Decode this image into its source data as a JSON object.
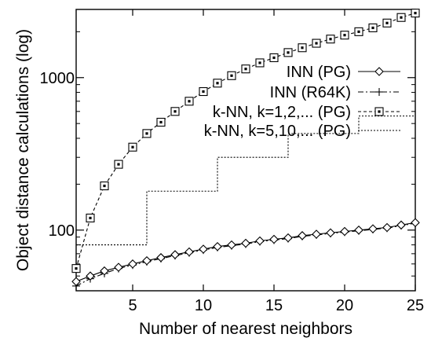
{
  "chart_data": {
    "type": "line",
    "xlabel": "Number of nearest neighbors",
    "ylabel": "Object distance calculations (log)",
    "xlim": [
      1,
      25
    ],
    "ylim": [
      40,
      2800
    ],
    "y_scale": "log",
    "x_ticks": [
      5,
      10,
      15,
      20,
      25
    ],
    "y_ticks": [
      100,
      1000
    ],
    "grid": false,
    "legend_position": "top-right",
    "series": [
      {
        "name": "INN (PG)",
        "line": "solid",
        "marker": "diamond",
        "x": [
          1,
          2,
          3,
          4,
          5,
          6,
          7,
          8,
          9,
          10,
          11,
          12,
          13,
          14,
          15,
          16,
          17,
          18,
          19,
          20,
          21,
          22,
          23,
          24,
          25
        ],
        "values": [
          46,
          50,
          54,
          57,
          60,
          63,
          66,
          69,
          72,
          75,
          78,
          80,
          82,
          85,
          87,
          89,
          92,
          94,
          96,
          98,
          100,
          102,
          104,
          108,
          112
        ]
      },
      {
        "name": "INN (R64K)",
        "line": "dashdot",
        "marker": "plus",
        "x": [
          1,
          2,
          3,
          4,
          5,
          6,
          7,
          8,
          9,
          10,
          11,
          12,
          13,
          14,
          15,
          16,
          17,
          18,
          19,
          20,
          21,
          22,
          23,
          24,
          25
        ],
        "values": [
          43,
          48,
          52,
          56,
          59,
          62,
          65,
          68,
          71,
          74,
          77,
          79,
          81,
          84,
          86,
          88,
          91,
          93,
          95,
          97,
          99,
          101,
          103,
          107,
          111
        ]
      },
      {
        "name": "k-NN, k=1,2,... (PG)",
        "line": "dashed",
        "marker": "square",
        "x": [
          1,
          2,
          3,
          4,
          5,
          6,
          7,
          8,
          9,
          10,
          11,
          12,
          13,
          14,
          15,
          16,
          17,
          18,
          19,
          20,
          21,
          22,
          23,
          24,
          25
        ],
        "values": [
          56,
          120,
          195,
          270,
          350,
          430,
          510,
          600,
          700,
          810,
          920,
          1030,
          1140,
          1250,
          1350,
          1460,
          1570,
          1680,
          1790,
          1900,
          2000,
          2120,
          2280,
          2480,
          2650
        ]
      },
      {
        "name": "k-NN, k=5,10,... (PG)",
        "line": "dotted",
        "marker": "none",
        "step": true,
        "x": [
          1,
          6,
          6,
          11,
          11,
          16,
          16,
          21,
          21,
          25
        ],
        "values": [
          80,
          80,
          180,
          180,
          300,
          300,
          430,
          430,
          560,
          560
        ]
      }
    ]
  }
}
